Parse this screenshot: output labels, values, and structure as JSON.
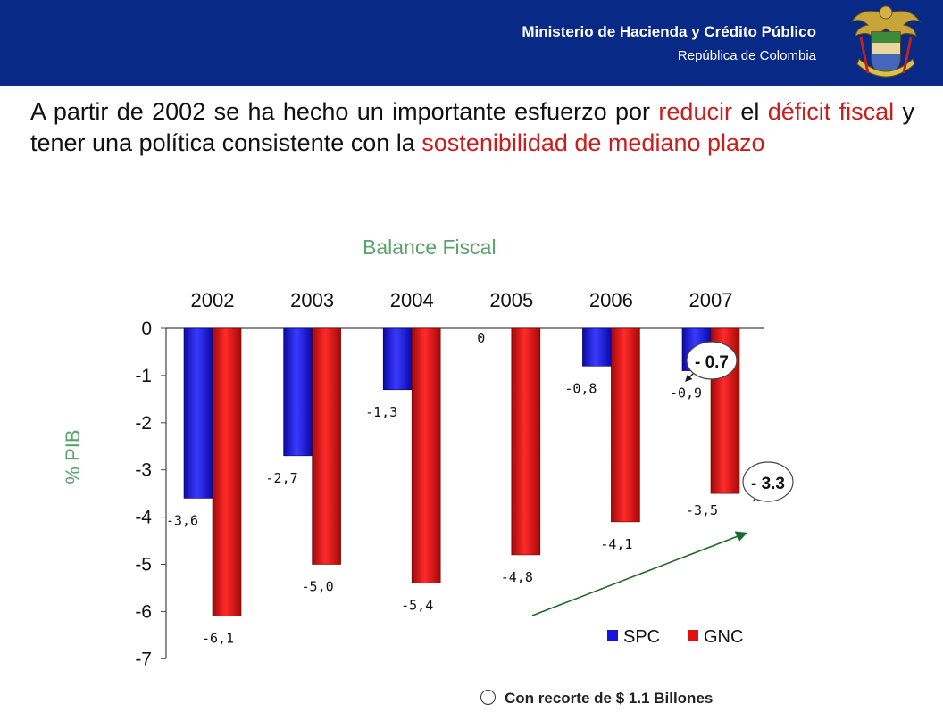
{
  "header": {
    "title": "Ministerio de Hacienda y Crédito Público",
    "subtitle": "República de Colombia"
  },
  "headline": {
    "p1": "A partir de 2002 se ha hecho un importante esfuerzo por ",
    "h1": "reducir",
    "p2": " el ",
    "h2": "déficit fiscal",
    "p3": " y tener una política consistente con la ",
    "h3": "sostenibilidad de mediano plazo"
  },
  "colors": {
    "header_bg": "#082a86",
    "highlight": "#cc1c1c",
    "chart_text": "#5aa36a",
    "spc": "#1414d8",
    "gnc": "#e01010"
  },
  "chart_data": {
    "type": "bar",
    "title": "Balance Fiscal",
    "ylabel": "% PIB",
    "xlabel": "",
    "categories": [
      "2002",
      "2003",
      "2004",
      "2005",
      "2006",
      "2007"
    ],
    "ylim": [
      -7,
      0
    ],
    "yticks": [
      "0",
      "-1",
      "-2",
      "-3",
      "-4",
      "-5",
      "-6",
      "-7"
    ],
    "xaxis_position": "top",
    "legend_position": "bottom-right",
    "series": [
      {
        "name": "SPC",
        "values": [
          -3.6,
          -2.7,
          -1.3,
          0,
          -0.8,
          -0.9
        ],
        "labels": [
          "-3,6",
          "-2,7",
          "-1,3",
          "0",
          "-0,8",
          "-0,9"
        ]
      },
      {
        "name": "GNC",
        "values": [
          -6.1,
          -5.0,
          -5.4,
          -4.8,
          -4.1,
          -3.5
        ],
        "labels": [
          "-6,1",
          "-5,0",
          "-5,4",
          "-4,8",
          "-4,1",
          "-3,5"
        ]
      }
    ],
    "annotations": [
      {
        "text": "- 0.7",
        "series": "SPC",
        "category": "2007"
      },
      {
        "text": "- 3.3",
        "series": "GNC",
        "category": "2007"
      }
    ]
  },
  "footnote": "Con recorte de $ 1.1 Billones"
}
